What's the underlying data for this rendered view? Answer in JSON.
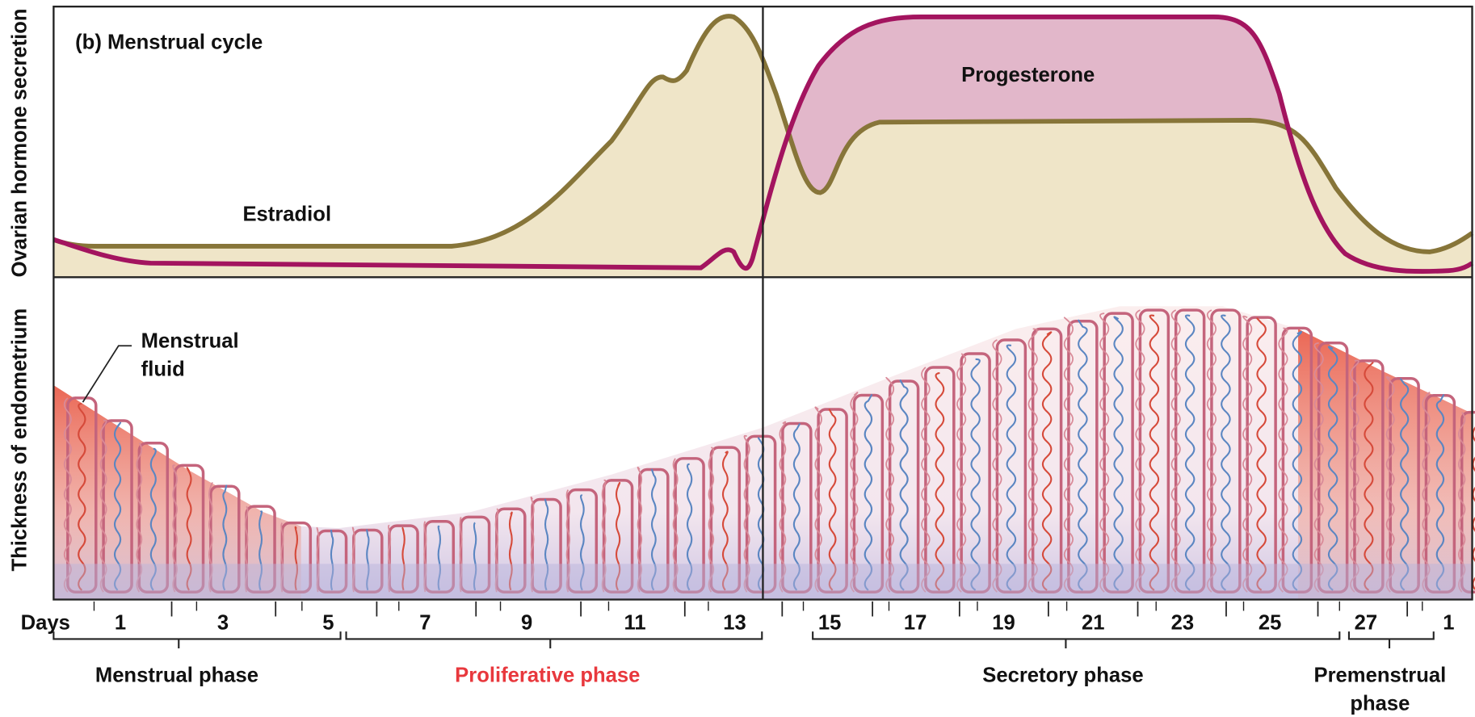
{
  "title": "(b) Menstrual cycle",
  "axis_labels": {
    "hormone": "Ovarian hormone secretion",
    "endometrium": "Thickness of endometrium"
  },
  "curves": {
    "estradiol": "Estradiol",
    "progesterone": "Progesterone"
  },
  "annotation": [
    "Menstrual",
    "fluid"
  ],
  "days": {
    "label": "Days",
    "values": [
      "1",
      "3",
      "5",
      "7",
      "9",
      "11",
      "13",
      "15",
      "17",
      "19",
      "21",
      "23",
      "25",
      "27",
      "1"
    ]
  },
  "phases": [
    [
      "Menstrual phase"
    ],
    [
      "Proliferative phase"
    ],
    [
      "Secretory phase"
    ],
    [
      "Premenstrual",
      "phase"
    ]
  ]
}
